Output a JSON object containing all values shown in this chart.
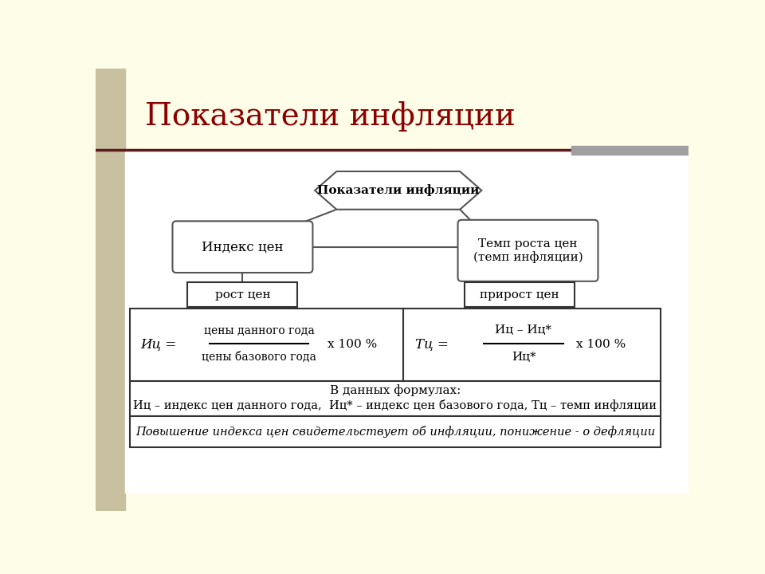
{
  "title": "Показатели инфляции",
  "title_color": "#8B0000",
  "title_fontsize": 28,
  "bg_color_left": "#C8C0A0",
  "bg_color_main": "#FDFDE8",
  "hex_label": "Показатели инфляции",
  "box1_label": "Индекс цен",
  "box2_label": "Темп роста цен\n(темп инфляции)",
  "sub1_label": "рост цен",
  "sub2_label": "прирост цен",
  "formula1_num": "цены данного года",
  "formula1_den": "цены базового года",
  "formula1_rhs": "х 100 %",
  "formula2_num": "Иц – Иц*",
  "formula2_den": "Иц*",
  "formula2_rhs": "х 100 %",
  "legend_title": "В данных формулах:",
  "legend_text": "Иц – индекс цен данного года,  Иц* – индекс цен базового года, Тц – темп инфляции",
  "italic_text": "Повышение индекса цен свидетельствует об инфляции, понижение - о дефляции",
  "sep_line_color": "#5C1A1A",
  "gray_block_color": "#A0A0A0",
  "edge_color": "#555555",
  "white": "#FFFFFF"
}
